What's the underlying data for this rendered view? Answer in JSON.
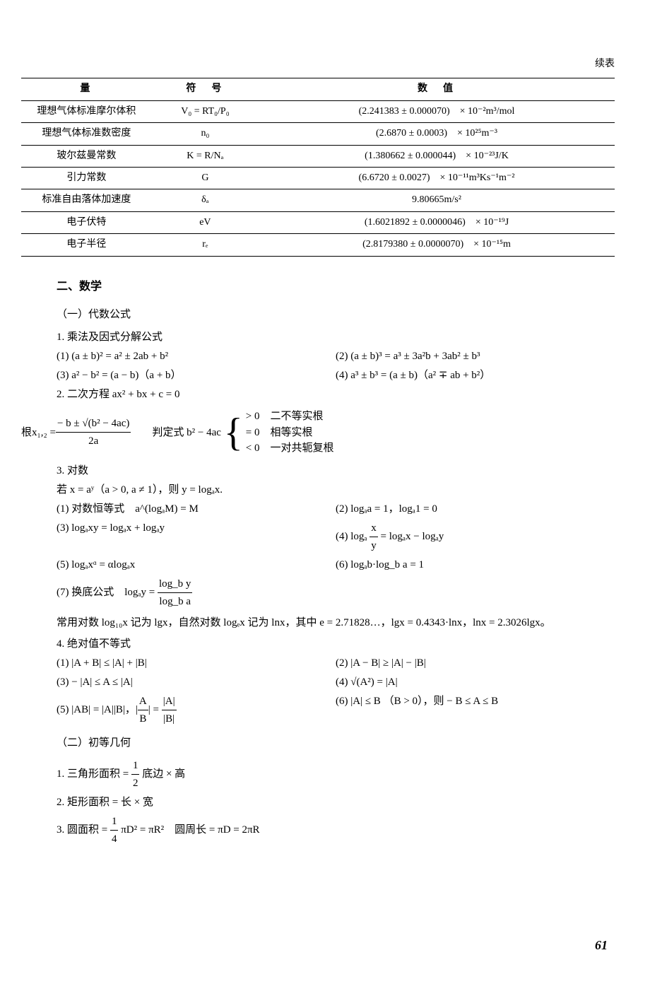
{
  "continuation_label": "续表",
  "table": {
    "headers": [
      "量",
      "符　号",
      "数　值"
    ],
    "rows": [
      [
        "理想气体标准摩尔体积",
        "V₀ = RT₀/P₀",
        "(2.241383 ± 0.000070)　× 10⁻²m³/mol"
      ],
      [
        "理想气体标准数密度",
        "n₀",
        "(2.6870 ± 0.0003)　× 10²⁵m⁻³"
      ],
      [
        "玻尔兹曼常数",
        "K = R/Nₐ",
        "(1.380662 ± 0.000044)　× 10⁻²³J/K"
      ],
      [
        "引力常数",
        "G",
        "(6.6720 ± 0.0027)　× 10⁻¹¹m³Ks⁻¹m⁻²"
      ],
      [
        "标准自由落体加速度",
        "δₐ",
        "9.80665m/s²"
      ],
      [
        "电子伏特",
        "eV",
        "(1.6021892 ± 0.0000046)　× 10⁻¹⁹J"
      ],
      [
        "电子半径",
        "rₑ",
        "(2.8179380 ± 0.0000070)　× 10⁻¹⁵m"
      ]
    ]
  },
  "section2_title": "二、数学",
  "algebra_title": "（一）代数公式",
  "mult_title": "1. 乘法及因式分解公式",
  "alg1": "(1)  (a ± b)² = a² ± 2ab + b²",
  "alg2": "(2)  (a ± b)³ = a³ ± 3a²b + 3ab² ± b³",
  "alg3": "(3)  a² − b² =  (a − b)（a + b）",
  "alg4": "(4)  a³ ± b³ =  (a ± b)（a² ∓ ab + b²）",
  "quad_title": "2. 二次方程  ax² + bx + c = 0",
  "root_label": "根 ",
  "root_x": "x₁,₂ = ",
  "root_num": "− b ± √(b² − 4ac)",
  "root_den": "2a",
  "discrim_label": "　　判定式  b² − 4ac",
  "disc_gt": "> 0　二不等实根",
  "disc_eq": "= 0　相等实根",
  "disc_lt": "< 0　一对共轭复根",
  "log_title": "3. 对数",
  "log_def": "若 x = aʸ（a > 0,  a ≠ 1），则 y = logₐx.",
  "log1": "(1)  对数恒等式　a^(logₐM) = M",
  "log2": "(2)  logₐa = 1，logₐ1 = 0",
  "log3": "(3)  logₐxy = logₐx + logₐy",
  "log4_pre": "(4)  logₐ ",
  "log4_num": "x",
  "log4_den": "y",
  "log4_post": " = logₐx − logₐy",
  "log5": "(5)  logₐxᵅ = αlogₐx",
  "log6": "(6)  logₐb·log_b a = 1",
  "log7_pre": "(7)  换底公式　logₐy = ",
  "log7_num": "log_b y",
  "log7_den": "log_b a",
  "log_para": "常用对数 log₁₀x 记为 lgx，自然对数 logₑx 记为 lnx，其中 e = 2.71828…，lgx = 0.4343·lnx，lnx = 2.3026lgx。",
  "abs_title": "4. 绝对值不等式",
  "abs1": "(1)  |A + B| ≤ |A| + |B|",
  "abs2": "(2)  |A − B| ≥ |A| − |B|",
  "abs3": "(3)  − |A| ≤ A ≤ |A|",
  "abs4": "(4)  √(A²) = |A|",
  "abs5_pre": "(5)  |AB| = |A||B|，",
  "abs5_lnum": "A",
  "abs5_lden": "B",
  "abs5_mid": " = ",
  "abs5_rnum": "|A|",
  "abs5_rden": "|B|",
  "abs6": "(6)  |A| ≤ B （B > 0），则 − B ≤ A ≤ B",
  "geom_title": "（二）初等几何",
  "geom1_pre": "1. 三角形面积 = ",
  "geom1_num": "1",
  "geom1_den": "2",
  "geom1_post": " 底边 × 高",
  "geom2": "2. 矩形面积 = 长 × 宽",
  "geom3_pre": "3. 圆面积 = ",
  "geom3_num": "1",
  "geom3_den": "4",
  "geom3_post": " πD² = πR²　圆周长 = πD = 2πR",
  "page_number": "61"
}
